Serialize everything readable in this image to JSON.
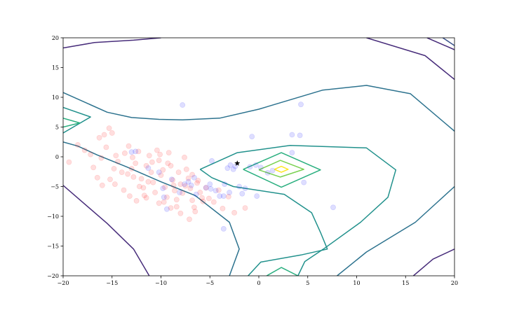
{
  "chart_data": {
    "type": "scatter",
    "title": "",
    "xlabel": "",
    "ylabel": "",
    "xlim": [
      -20,
      20
    ],
    "ylim": [
      -20,
      20
    ],
    "x_ticks": [
      -20,
      -15,
      -10,
      -5,
      0,
      5,
      10,
      15,
      20
    ],
    "y_ticks": [
      20,
      15,
      10,
      5,
      0,
      -5,
      -10,
      -15,
      -20
    ],
    "grid": false,
    "legend": "none",
    "marker_point": {
      "x": -2.2,
      "y": -1.1,
      "symbol": "star",
      "color": "#000000"
    },
    "contours": [
      {
        "level": 0,
        "color": "#472c7a",
        "paths": [
          [
            [
              -20,
              18.3
            ],
            [
              -16.8,
              19.2
            ],
            [
              -12.8,
              19.6
            ],
            [
              -10,
              20
            ]
          ],
          [
            [
              -20,
              -4.8
            ],
            [
              -15.5,
              -11.2
            ],
            [
              -12.8,
              -15.5
            ],
            [
              -11.2,
              -20
            ]
          ],
          [
            [
              11,
              20
            ],
            [
              17,
              17
            ],
            [
              20,
              13
            ]
          ],
          [
            [
              17.2,
              20
            ],
            [
              20,
              18
            ]
          ],
          [
            [
              20,
              -15.5
            ],
            [
              17.8,
              -17.2
            ],
            [
              15.8,
              -20
            ]
          ]
        ]
      },
      {
        "level": 1,
        "color": "#3b528b",
        "paths": [
          [
            [
              18.8,
              20
            ],
            [
              20,
              18.7
            ]
          ]
        ]
      },
      {
        "level": 2,
        "color": "#2c728e",
        "paths": [
          [
            [
              -20,
              10.8
            ],
            [
              -15.5,
              7.5
            ],
            [
              -13,
              6.6
            ],
            [
              -10.2,
              6.3
            ],
            [
              -7.8,
              6.2
            ],
            [
              -4,
              6.5
            ],
            [
              0,
              8
            ],
            [
              6.5,
              11.2
            ],
            [
              11,
              12
            ],
            [
              15.5,
              10.6
            ],
            [
              20,
              4.3
            ]
          ],
          [
            [
              -20,
              2.5
            ],
            [
              -18.5,
              1.8
            ],
            [
              -16.5,
              0.3
            ],
            [
              -13.5,
              -1.7
            ],
            [
              -10,
              -4.2
            ],
            [
              -6.5,
              -6.5
            ],
            [
              -3,
              -11
            ],
            [
              -2,
              -15.5
            ],
            [
              -3,
              -20
            ]
          ],
          [
            [
              20,
              -5
            ],
            [
              18,
              -8
            ],
            [
              16,
              -11
            ],
            [
              11,
              -16
            ],
            [
              8,
              -20
            ]
          ]
        ]
      },
      {
        "level": 3,
        "color": "#21918c",
        "paths": [
          [
            [
              -20,
              8.3
            ],
            [
              -17.2,
              6.7
            ],
            [
              -20,
              4
            ]
          ],
          [
            [
              -6,
              -2.1
            ],
            [
              -2.2,
              0.7
            ],
            [
              3.2,
              1.9
            ],
            [
              11,
              1.5
            ],
            [
              14,
              -2.2
            ],
            [
              13.2,
              -6.8
            ],
            [
              10.4,
              -11
            ],
            [
              6.6,
              -15.5
            ],
            [
              4.7,
              -17.6
            ],
            [
              4,
              -20
            ]
          ],
          [
            [
              -6,
              -2.1
            ],
            [
              -4.8,
              -3.5
            ],
            [
              -2.6,
              -5
            ],
            [
              2.6,
              -6.3
            ],
            [
              5.4,
              -9.4
            ],
            [
              6.3,
              -12.7
            ],
            [
              7,
              -15.5
            ],
            [
              4.3,
              -16.5
            ],
            [
              0.2,
              -17.7
            ],
            [
              -1.1,
              -20
            ]
          ]
        ]
      },
      {
        "level": 4,
        "color": "#2aaf7f",
        "paths": [
          [
            [
              -20,
              6.5
            ],
            [
              -18.3,
              5.7
            ],
            [
              -20,
              5
            ]
          ],
          [
            [
              -1.6,
              -2.1
            ],
            [
              2.3,
              0.7
            ],
            [
              6.3,
              -2.2
            ],
            [
              2.3,
              -5.1
            ],
            [
              -1.6,
              -2.1
            ]
          ],
          [
            [
              0.8,
              -20
            ],
            [
              2.3,
              -18.6
            ],
            [
              4,
              -20
            ]
          ]
        ]
      },
      {
        "level": 5,
        "color": "#7ad151",
        "paths": [
          [
            [
              0,
              -2.2
            ],
            [
              2.2,
              -0.6
            ],
            [
              4.6,
              -2.1
            ],
            [
              2.2,
              -3.4
            ],
            [
              0,
              -2.2
            ]
          ]
        ]
      },
      {
        "level": 6,
        "color": "#fde725",
        "paths": [
          [
            [
              1.6,
              -2.1
            ],
            [
              2.3,
              -1.6
            ],
            [
              3,
              -2.1
            ],
            [
              2.3,
              -2.6
            ],
            [
              1.6,
              -2.1
            ]
          ]
        ]
      }
    ],
    "series": [
      {
        "color": "#ff0000",
        "alpha": 0.13,
        "points": [
          [
            -19.4,
            -0.9
          ],
          [
            -18.5,
            2.0
          ],
          [
            -17.8,
            1.1
          ],
          [
            -17.2,
            0.4
          ],
          [
            -16.9,
            -1.8
          ],
          [
            -16.3,
            3.2
          ],
          [
            -15.8,
            3.7
          ],
          [
            -15.3,
            4.8
          ],
          [
            -15.0,
            4.0
          ],
          [
            -15.6,
            1.6
          ],
          [
            -16.1,
            -0.2
          ],
          [
            -16.5,
            -3.5
          ],
          [
            -16.0,
            -4.8
          ],
          [
            -15.2,
            -3.8
          ],
          [
            -14.8,
            -2.0
          ],
          [
            -14.4,
            -0.8
          ],
          [
            -14.0,
            -2.6
          ],
          [
            -13.7,
            0.6
          ],
          [
            -13.3,
            1.8
          ],
          [
            -13.0,
            -2.0
          ],
          [
            -12.8,
            -3.4
          ],
          [
            -12.6,
            -1.1
          ],
          [
            -12.3,
            0.9
          ],
          [
            -12.0,
            -3.7
          ],
          [
            -11.8,
            -5.2
          ],
          [
            -11.5,
            -1.5
          ],
          [
            -11.2,
            0.2
          ],
          [
            -11.0,
            -2.6
          ],
          [
            -10.8,
            -4.3
          ],
          [
            -10.6,
            -6.0
          ],
          [
            -10.4,
            1.1
          ],
          [
            -10.2,
            -0.6
          ],
          [
            -10.0,
            -3.1
          ],
          [
            -9.8,
            -2.2
          ],
          [
            -9.6,
            -5.1
          ],
          [
            -9.4,
            -6.8
          ],
          [
            -9.2,
            0.7
          ],
          [
            -9.0,
            -1.5
          ],
          [
            -8.8,
            -3.9
          ],
          [
            -8.6,
            -5.7
          ],
          [
            -8.4,
            -7.2
          ],
          [
            -8.2,
            -2.6
          ],
          [
            -8.0,
            -4.6
          ],
          [
            -7.8,
            -6.1
          ],
          [
            -7.6,
            -0.1
          ],
          [
            -7.4,
            -2.1
          ],
          [
            -7.2,
            -3.6
          ],
          [
            -7.0,
            -5.3
          ],
          [
            -6.8,
            -7.3
          ],
          [
            -6.6,
            -8.5
          ],
          [
            -6.3,
            -4.4
          ],
          [
            -6.0,
            -6.0
          ],
          [
            -5.7,
            -7.5
          ],
          [
            -5.4,
            -5.2
          ],
          [
            -5.1,
            -7.0
          ],
          [
            -12.5,
            -7.4
          ],
          [
            -11.7,
            -6.5
          ],
          [
            -10.2,
            -7.8
          ],
          [
            -9.0,
            -8.6
          ],
          [
            -8.0,
            -9.5
          ],
          [
            -7.1,
            -10.5
          ],
          [
            -14.7,
            -4.6
          ],
          [
            -13.8,
            -5.6
          ],
          [
            -13.2,
            -6.6
          ],
          [
            -12.2,
            -5.0
          ],
          [
            -11.3,
            -4.2
          ],
          [
            -10.9,
            -0.9
          ],
          [
            -10.1,
            0.4
          ],
          [
            -9.3,
            -1.1
          ],
          [
            -8.7,
            -4.8
          ],
          [
            -7.5,
            -4.9
          ],
          [
            -6.8,
            -3.0
          ],
          [
            -6.2,
            -4.0
          ],
          [
            -13.4,
            -2.9
          ],
          [
            -14.6,
            0.2
          ],
          [
            -12.9,
            -0.1
          ],
          [
            -11.5,
            -6.9
          ],
          [
            -9.7,
            -7.6
          ],
          [
            -8.4,
            -8.4
          ],
          [
            -6.5,
            -9.2
          ],
          [
            -5.8,
            -6.9
          ],
          [
            -4.6,
            -7.6
          ],
          [
            -3.7,
            -8.7
          ],
          [
            -2.5,
            -9.4
          ],
          [
            -1.4,
            -8.6
          ],
          [
            -3.1,
            -6.7
          ],
          [
            -4.1,
            -5.6
          ]
        ]
      },
      {
        "color": "#0000ff",
        "alpha": 0.13,
        "points": [
          [
            -13.0,
            0.8
          ],
          [
            -12.6,
            0.9
          ],
          [
            -11.3,
            -1.9
          ],
          [
            -10.2,
            -2.6
          ],
          [
            -9.7,
            -6.8
          ],
          [
            -9.4,
            -8.8
          ],
          [
            -8.1,
            -6.0
          ],
          [
            -7.8,
            8.7
          ],
          [
            -7.6,
            -4.6
          ],
          [
            -7.2,
            -4.2
          ],
          [
            -6.9,
            -4.8
          ],
          [
            -6.4,
            -6.3
          ],
          [
            -5.4,
            -5.2
          ],
          [
            -5.0,
            -4.6
          ],
          [
            -4.9,
            -5.4
          ],
          [
            -4.4,
            -5.7
          ],
          [
            -4.0,
            -6.6
          ],
          [
            -3.6,
            -6.6
          ],
          [
            -3.0,
            -6.0
          ],
          [
            -2.9,
            -1.4
          ],
          [
            -2.6,
            -2.1
          ],
          [
            -2.4,
            -1.6
          ],
          [
            -2.0,
            -5.0
          ],
          [
            -1.7,
            -6.2
          ],
          [
            -1.4,
            -5.3
          ],
          [
            -0.9,
            -1.7
          ],
          [
            -0.7,
            3.4
          ],
          [
            -0.3,
            -1.4
          ],
          [
            0.2,
            -1.8
          ],
          [
            0.9,
            -2.7
          ],
          [
            1.4,
            -2.3
          ],
          [
            3.4,
            3.7
          ],
          [
            4.2,
            3.6
          ],
          [
            4.6,
            -4.3
          ],
          [
            4.3,
            8.8
          ],
          [
            -4.8,
            -0.7
          ],
          [
            -3.2,
            -1.9
          ],
          [
            -3.5,
            -4.6
          ],
          [
            -6.6,
            -3.5
          ],
          [
            -8.9,
            -3.8
          ],
          [
            -9.8,
            -5.3
          ],
          [
            -3.6,
            -12.1
          ],
          [
            -0.2,
            -6.6
          ],
          [
            7.6,
            -8.5
          ],
          [
            3.4,
            0.7
          ]
        ]
      }
    ]
  }
}
